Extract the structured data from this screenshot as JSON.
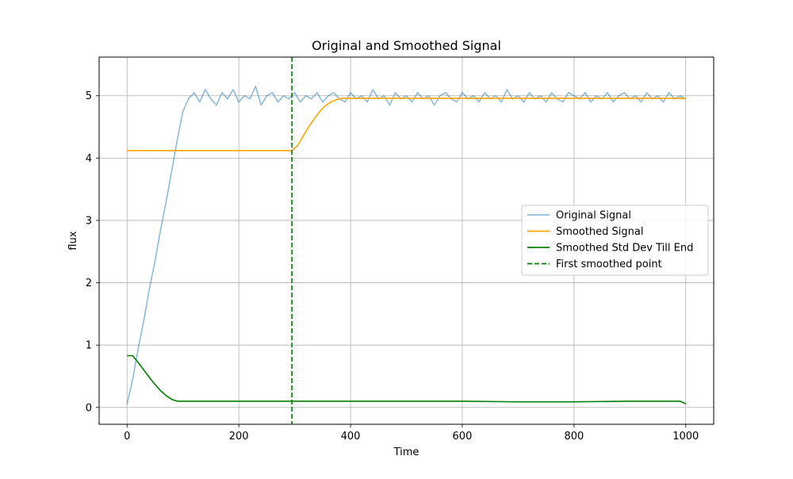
{
  "chart_data": {
    "type": "line",
    "title": "Original and Smoothed Signal",
    "xlabel": "Time",
    "ylabel": "flux",
    "xlim": [
      -50,
      1050
    ],
    "ylim": [
      -0.27,
      5.62
    ],
    "xticks": [
      0,
      200,
      400,
      600,
      800,
      1000
    ],
    "yticks": [
      0,
      1,
      2,
      3,
      4,
      5
    ],
    "grid": true,
    "legend_position": "center-right",
    "series": [
      {
        "name": "Original Signal",
        "color": "#1f77b4",
        "opacity": 0.5,
        "style": "solid",
        "x": [
          0,
          10,
          20,
          30,
          40,
          50,
          60,
          70,
          80,
          90,
          100,
          110,
          120,
          130,
          140,
          150,
          160,
          170,
          180,
          190,
          200,
          210,
          220,
          230,
          240,
          250,
          260,
          270,
          280,
          290,
          300,
          310,
          320,
          330,
          340,
          350,
          360,
          370,
          380,
          390,
          400,
          410,
          420,
          430,
          440,
          450,
          460,
          470,
          480,
          490,
          500,
          510,
          520,
          530,
          540,
          550,
          560,
          570,
          580,
          590,
          600,
          610,
          620,
          630,
          640,
          650,
          660,
          670,
          680,
          690,
          700,
          710,
          720,
          730,
          740,
          750,
          760,
          770,
          780,
          790,
          800,
          810,
          820,
          830,
          840,
          850,
          860,
          870,
          880,
          890,
          900,
          910,
          920,
          930,
          940,
          950,
          960,
          970,
          980,
          990,
          1000
        ],
        "values": [
          0.05,
          0.45,
          0.95,
          1.4,
          1.9,
          2.35,
          2.85,
          3.3,
          3.8,
          4.3,
          4.75,
          4.95,
          5.05,
          4.9,
          5.1,
          4.95,
          4.85,
          5.05,
          4.95,
          5.1,
          4.9,
          5.0,
          4.95,
          5.15,
          4.85,
          5.0,
          5.05,
          4.9,
          5.0,
          4.95,
          5.05,
          4.9,
          5.0,
          4.95,
          5.05,
          4.9,
          5.0,
          5.05,
          4.95,
          4.9,
          5.05,
          4.95,
          5.0,
          4.9,
          5.1,
          4.95,
          5.0,
          4.85,
          5.05,
          4.95,
          5.0,
          4.9,
          5.05,
          4.95,
          5.0,
          4.85,
          5.0,
          5.05,
          4.95,
          4.9,
          5.05,
          4.95,
          5.0,
          4.9,
          5.05,
          4.95,
          5.0,
          4.9,
          5.1,
          4.95,
          5.0,
          4.9,
          5.05,
          4.95,
          5.0,
          4.9,
          5.05,
          4.95,
          4.9,
          5.05,
          5.0,
          4.95,
          5.05,
          4.9,
          5.0,
          4.95,
          5.05,
          4.9,
          5.0,
          5.05,
          4.95,
          5.0,
          4.9,
          5.05,
          4.95,
          5.0,
          4.9,
          5.05,
          4.95,
          5.0,
          4.95
        ]
      },
      {
        "name": "Smoothed Signal",
        "color": "#ffa500",
        "style": "solid",
        "x": [
          0,
          295,
          305,
          315,
          325,
          335,
          345,
          355,
          365,
          375,
          385,
          400,
          500,
          600,
          700,
          800,
          900,
          1000
        ],
        "values": [
          4.12,
          4.12,
          4.2,
          4.35,
          4.5,
          4.63,
          4.75,
          4.84,
          4.9,
          4.94,
          4.96,
          4.96,
          4.96,
          4.96,
          4.96,
          4.96,
          4.96,
          4.96
        ]
      },
      {
        "name": "Smoothed Std Dev Till End",
        "color": "#008000",
        "style": "solid",
        "x": [
          0,
          10,
          20,
          30,
          40,
          50,
          60,
          70,
          80,
          90,
          100,
          200,
          300,
          400,
          500,
          600,
          700,
          800,
          900,
          960,
          980,
          990,
          1000
        ],
        "values": [
          0.83,
          0.83,
          0.72,
          0.6,
          0.48,
          0.37,
          0.27,
          0.19,
          0.13,
          0.1,
          0.1,
          0.1,
          0.1,
          0.1,
          0.1,
          0.1,
          0.09,
          0.09,
          0.1,
          0.1,
          0.1,
          0.1,
          0.06
        ]
      },
      {
        "name": "First smoothed point",
        "color": "#008000",
        "style": "dashed",
        "vline_x": 295
      }
    ]
  }
}
